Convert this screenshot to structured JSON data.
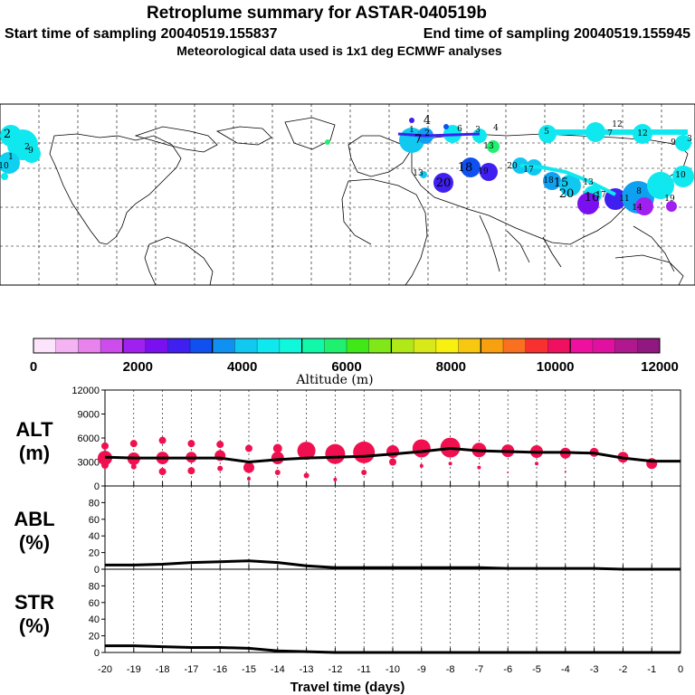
{
  "header": {
    "title": "Retroplume summary for ASTAR-040519b",
    "start_label": "Start time of sampling 20040519.155837",
    "end_label": "End time of sampling 20040519.155945",
    "met_label": "Meteorological data used is 1x1 deg ECMWF analyses"
  },
  "map_labels": [
    "2",
    "2",
    "1",
    "10",
    "9",
    "4",
    "13",
    "6",
    "1",
    "2",
    "7",
    "3",
    "4",
    "13",
    "5",
    "18",
    "19",
    "20",
    "17",
    "18",
    "15",
    "13",
    "12",
    "12",
    "19",
    "16",
    "17",
    "14",
    "11",
    "10",
    "20",
    "8",
    "9",
    "7",
    "3",
    "20"
  ],
  "colorbar": {
    "label": "Altitude (m)",
    "ticks": [
      "0",
      "2000",
      "4000",
      "6000",
      "8000",
      "10000",
      "12000"
    ],
    "colors": [
      "#fce4fc",
      "#f4b4f4",
      "#e882ec",
      "#cc4cec",
      "#a020f0",
      "#7a10f0",
      "#4020f0",
      "#1050f0",
      "#1090f0",
      "#10c8f0",
      "#10e8f0",
      "#10f8dc",
      "#10f8a8",
      "#20f070",
      "#40e818",
      "#80e818",
      "#b0e818",
      "#d8e818",
      "#f8f010",
      "#f8c810",
      "#f8a010",
      "#f87020",
      "#f83030",
      "#f01060",
      "#f010a0",
      "#e010a0",
      "#b01890",
      "#901880"
    ]
  },
  "chart_data": [
    {
      "type": "line",
      "name": "ALT",
      "ylabel": "ALT\n(m)",
      "ylabel_top": "ALT",
      "ylabel_bottom": "(m)",
      "xlim": [
        -20,
        0
      ],
      "ylim": [
        0,
        12000
      ],
      "yticks": [
        "0",
        "3000",
        "6000",
        "9000",
        "12000"
      ],
      "x": [
        -20,
        -19,
        -18,
        -17,
        -16,
        -15,
        -14,
        -13,
        -12,
        -11,
        -10,
        -9,
        -8,
        -7,
        -6,
        -5,
        -4,
        -3,
        -2,
        -1,
        0
      ],
      "y": [
        3600,
        3500,
        3500,
        3500,
        3500,
        3000,
        3300,
        3500,
        3600,
        3700,
        4000,
        4300,
        4700,
        4400,
        4300,
        4200,
        4200,
        4100,
        3500,
        3100,
        3100
      ],
      "scatter": [
        {
          "x": -20,
          "y": 3500,
          "r": 8
        },
        {
          "x": -20,
          "y": 5000,
          "r": 4
        },
        {
          "x": -20,
          "y": 2600,
          "r": 4
        },
        {
          "x": -19,
          "y": 3400,
          "r": 7
        },
        {
          "x": -19,
          "y": 5300,
          "r": 4
        },
        {
          "x": -19,
          "y": 2400,
          "r": 3
        },
        {
          "x": -18,
          "y": 3500,
          "r": 7
        },
        {
          "x": -18,
          "y": 5700,
          "r": 4
        },
        {
          "x": -18,
          "y": 1800,
          "r": 4
        },
        {
          "x": -17,
          "y": 3600,
          "r": 6
        },
        {
          "x": -17,
          "y": 5300,
          "r": 4
        },
        {
          "x": -17,
          "y": 1900,
          "r": 4
        },
        {
          "x": -16,
          "y": 3800,
          "r": 6
        },
        {
          "x": -16,
          "y": 5200,
          "r": 4
        },
        {
          "x": -16,
          "y": 2200,
          "r": 3
        },
        {
          "x": -15,
          "y": 2300,
          "r": 6
        },
        {
          "x": -15,
          "y": 4700,
          "r": 4
        },
        {
          "x": -15,
          "y": 900,
          "r": 2
        },
        {
          "x": -14,
          "y": 3500,
          "r": 7
        },
        {
          "x": -14,
          "y": 4700,
          "r": 5
        },
        {
          "x": -14,
          "y": 1700,
          "r": 3
        },
        {
          "x": -13,
          "y": 4400,
          "r": 10
        },
        {
          "x": -13,
          "y": 1300,
          "r": 3
        },
        {
          "x": -12,
          "y": 4000,
          "r": 11
        },
        {
          "x": -12,
          "y": 800,
          "r": 2
        },
        {
          "x": -11,
          "y": 4200,
          "r": 12
        },
        {
          "x": -11,
          "y": 1700,
          "r": 3
        },
        {
          "x": -10,
          "y": 4300,
          "r": 7
        },
        {
          "x": -10,
          "y": 3000,
          "r": 4
        },
        {
          "x": -9,
          "y": 4700,
          "r": 10
        },
        {
          "x": -9,
          "y": 2500,
          "r": 2
        },
        {
          "x": -8,
          "y": 4800,
          "r": 11
        },
        {
          "x": -8,
          "y": 2800,
          "r": 2
        },
        {
          "x": -7,
          "y": 4500,
          "r": 8
        },
        {
          "x": -7,
          "y": 2300,
          "r": 2
        },
        {
          "x": -6,
          "y": 4400,
          "r": 7
        },
        {
          "x": -6,
          "y": 1700,
          "r": 1
        },
        {
          "x": -5,
          "y": 4300,
          "r": 7
        },
        {
          "x": -5,
          "y": 2800,
          "r": 2
        },
        {
          "x": -4,
          "y": 4100,
          "r": 6
        },
        {
          "x": -4,
          "y": 1800,
          "r": 1
        },
        {
          "x": -3,
          "y": 4200,
          "r": 5
        },
        {
          "x": -2,
          "y": 3600,
          "r": 6
        },
        {
          "x": -1,
          "y": 2800,
          "r": 6
        }
      ]
    },
    {
      "type": "line",
      "name": "ABL",
      "ylabel_top": "ABL",
      "ylabel_bottom": "(%)",
      "xlim": [
        -20,
        0
      ],
      "ylim": [
        0,
        100
      ],
      "yticks": [
        "0",
        "20",
        "40",
        "60",
        "80"
      ],
      "x": [
        -20,
        -19,
        -18,
        -17,
        -16,
        -15,
        -14,
        -13,
        -12,
        -11,
        -10,
        -9,
        -8,
        -7,
        -6,
        -5,
        -4,
        -3,
        -2,
        -1,
        0
      ],
      "y": [
        5,
        5,
        6,
        8,
        9,
        10,
        8,
        4,
        2,
        2,
        2,
        2,
        2,
        2,
        1,
        1,
        1,
        1,
        0,
        0,
        0
      ]
    },
    {
      "type": "line",
      "name": "STR",
      "ylabel_top": "STR",
      "ylabel_bottom": "(%)",
      "xlim": [
        -20,
        0
      ],
      "ylim": [
        0,
        100
      ],
      "yticks": [
        "0",
        "20",
        "40",
        "60",
        "80"
      ],
      "x": [
        -20,
        -19,
        -18,
        -17,
        -16,
        -15,
        -14,
        -13,
        -12,
        -11,
        -10,
        -9,
        -8,
        -7,
        -6,
        -5,
        -4,
        -3,
        -2,
        -1,
        0
      ],
      "y": [
        8,
        8,
        7,
        6,
        6,
        5,
        2,
        1,
        0,
        0,
        0,
        0,
        0,
        0,
        0,
        0,
        0,
        0,
        0,
        0,
        0
      ],
      "xlabel": "Travel time (days)",
      "xticks": [
        "-20",
        "-19",
        "-18",
        "-17",
        "-16",
        "-15",
        "-14",
        "-13",
        "-12",
        "-11",
        "-10",
        "-9",
        "-8",
        "-7",
        "-6",
        "-5",
        "-4",
        "-3",
        "-2",
        "-1",
        "0"
      ]
    }
  ]
}
